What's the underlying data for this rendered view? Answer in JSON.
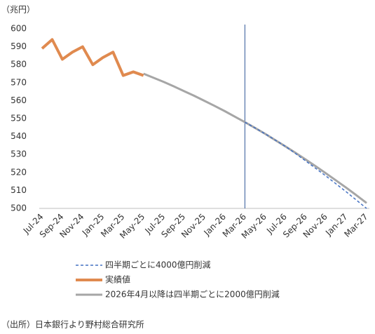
{
  "chart_data": {
    "type": "line",
    "y_unit_label": "（兆円）",
    "source": "（出所）日本銀行より野村総合研究所",
    "categories": [
      "Jul-24",
      null,
      "Sep-24",
      null,
      "Nov-24",
      null,
      "Jan-25",
      null,
      "Mar-25",
      null,
      "May-25",
      null,
      "Jul-25",
      null,
      "Sep-25",
      null,
      "Nov-25",
      null,
      "Jan-26",
      null,
      "Mar-26",
      null,
      "May-26",
      null,
      "Jul-26",
      null,
      "Sep-26",
      null,
      "Nov-26",
      null,
      "Jan-27",
      null,
      "Mar-27"
    ],
    "series": [
      {
        "name": "四半期ごとに4000億円削減",
        "color": "#4472c4",
        "dashed": true,
        "width": 1.5,
        "values": [
          null,
          null,
          null,
          null,
          null,
          null,
          null,
          null,
          null,
          null,
          null,
          null,
          null,
          null,
          null,
          null,
          null,
          null,
          null,
          null,
          548,
          544.8,
          541.5,
          538,
          534.5,
          530.5,
          526.4,
          522.2,
          518,
          513.6,
          509.2,
          504.6,
          500
        ]
      },
      {
        "name": "実績値",
        "color": "#e08a4f",
        "dashed": false,
        "width": 4,
        "values": [
          589,
          594,
          583,
          587,
          590,
          580,
          584,
          587,
          574,
          576,
          574,
          null,
          null,
          null,
          null,
          null,
          null,
          null,
          null,
          null,
          null,
          null,
          null,
          null,
          null,
          null,
          null,
          null,
          null,
          null,
          null,
          null,
          null
        ]
      },
      {
        "name": "2026年4月以降は四半期ごとに2000億円削減",
        "color": "#a6a6a6",
        "dashed": false,
        "width": 3,
        "values": [
          null,
          null,
          null,
          null,
          null,
          null,
          null,
          null,
          null,
          null,
          575,
          572.7,
          570.4,
          567.9,
          565.3,
          562.7,
          559.9,
          557.1,
          554.2,
          551.1,
          548,
          544.8,
          541.5,
          538,
          534.5,
          530.9,
          527.2,
          523.4,
          519.5,
          515.5,
          511.5,
          507.3,
          503
        ]
      }
    ],
    "vline": "Mar-26",
    "vline_color": "#2f5597",
    "ylim": [
      500,
      600
    ],
    "yticks": [
      500,
      510,
      520,
      530,
      540,
      550,
      560,
      570,
      580,
      590,
      600
    ]
  }
}
